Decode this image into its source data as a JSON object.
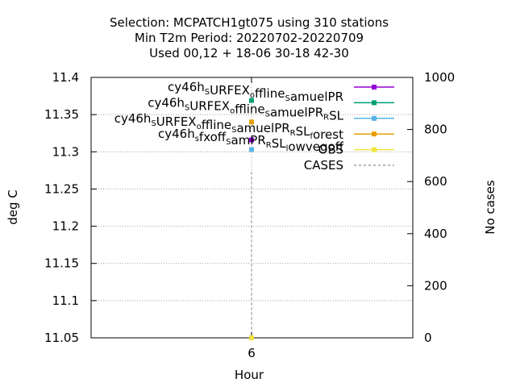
{
  "chart_data": {
    "type": "scatter",
    "title_lines": [
      "Selection: MCPATCH1gt075 using   310 stations",
      "Min T2m   Period: 20220702-20220709",
      "Used  00,12  + 18-06 30-18 42-30"
    ],
    "xlabel": "Hour",
    "ylabel": "deg C",
    "y2label": "No cases",
    "x_ticks": [
      "6"
    ],
    "y_ticks": [
      "11.4",
      "11.35",
      "11.3",
      "11.25",
      "11.2",
      "11.15",
      "11.1",
      "11.05"
    ],
    "y2_ticks": [
      "1000",
      "800",
      "600",
      "400",
      "200",
      "0"
    ],
    "ylim": [
      11.05,
      11.4
    ],
    "y2lim": [
      0,
      1000
    ],
    "grid": true,
    "legend_position": "top-right",
    "series": [
      {
        "name_parts": [
          [
            "cy46h",
            ""
          ],
          [
            "S",
            "sub"
          ],
          [
            "URFEX",
            ""
          ],
          [
            "o",
            "sub"
          ],
          [
            "ffline",
            ""
          ],
          [
            "S",
            "sub"
          ],
          [
            "amuelPR",
            ""
          ]
        ],
        "color": "#9400d3",
        "marker": "square",
        "axis": "y",
        "x": [
          6
        ],
        "y": [
          11.316
        ]
      },
      {
        "name_parts": [
          [
            "cy46h",
            ""
          ],
          [
            "S",
            "sub"
          ],
          [
            "URFEX",
            ""
          ],
          [
            "o",
            "sub"
          ],
          [
            "ffline",
            ""
          ],
          [
            "S",
            "sub"
          ],
          [
            "amuelPR",
            ""
          ],
          [
            "R",
            "sub"
          ],
          [
            "SL",
            ""
          ]
        ],
        "color": "#009e73",
        "marker": "square",
        "axis": "y",
        "x": [
          6
        ],
        "y": [
          11.369
        ]
      },
      {
        "name_parts": [
          [
            "cy46h",
            ""
          ],
          [
            "S",
            "sub"
          ],
          [
            "URFEX",
            ""
          ],
          [
            "o",
            "sub"
          ],
          [
            "ffline",
            ""
          ],
          [
            "S",
            "sub"
          ],
          [
            "amuelPR",
            ""
          ],
          [
            "R",
            "sub"
          ],
          [
            "SL",
            ""
          ],
          [
            "f",
            "sub"
          ],
          [
            "orest",
            ""
          ]
        ],
        "color": "#56b4e9",
        "marker": "square",
        "axis": "y",
        "x": [
          6
        ],
        "y": [
          11.303
        ]
      },
      {
        "name_parts": [
          [
            "cy46h",
            ""
          ],
          [
            "s",
            "sub"
          ],
          [
            "fxoff",
            ""
          ],
          [
            "S",
            "sub"
          ],
          [
            "amPR",
            ""
          ],
          [
            "R",
            "sub"
          ],
          [
            "SL",
            ""
          ],
          [
            "l",
            "sub"
          ],
          [
            "owvegoff",
            ""
          ]
        ],
        "color": "#e69f00",
        "marker": "square",
        "axis": "y",
        "x": [
          6
        ],
        "y": [
          11.34
        ]
      },
      {
        "name_parts": [
          [
            "OBS",
            ""
          ]
        ],
        "color": "#f0e442",
        "marker": "square",
        "axis": "y",
        "x": [
          6
        ],
        "y": [
          11.05
        ]
      },
      {
        "name_parts": [
          [
            "CASES",
            ""
          ]
        ],
        "color": "#a0a0a0",
        "marker": "none",
        "axis": "y2",
        "dashed": true,
        "x": [
          6
        ],
        "y": [
          0
        ]
      }
    ]
  }
}
